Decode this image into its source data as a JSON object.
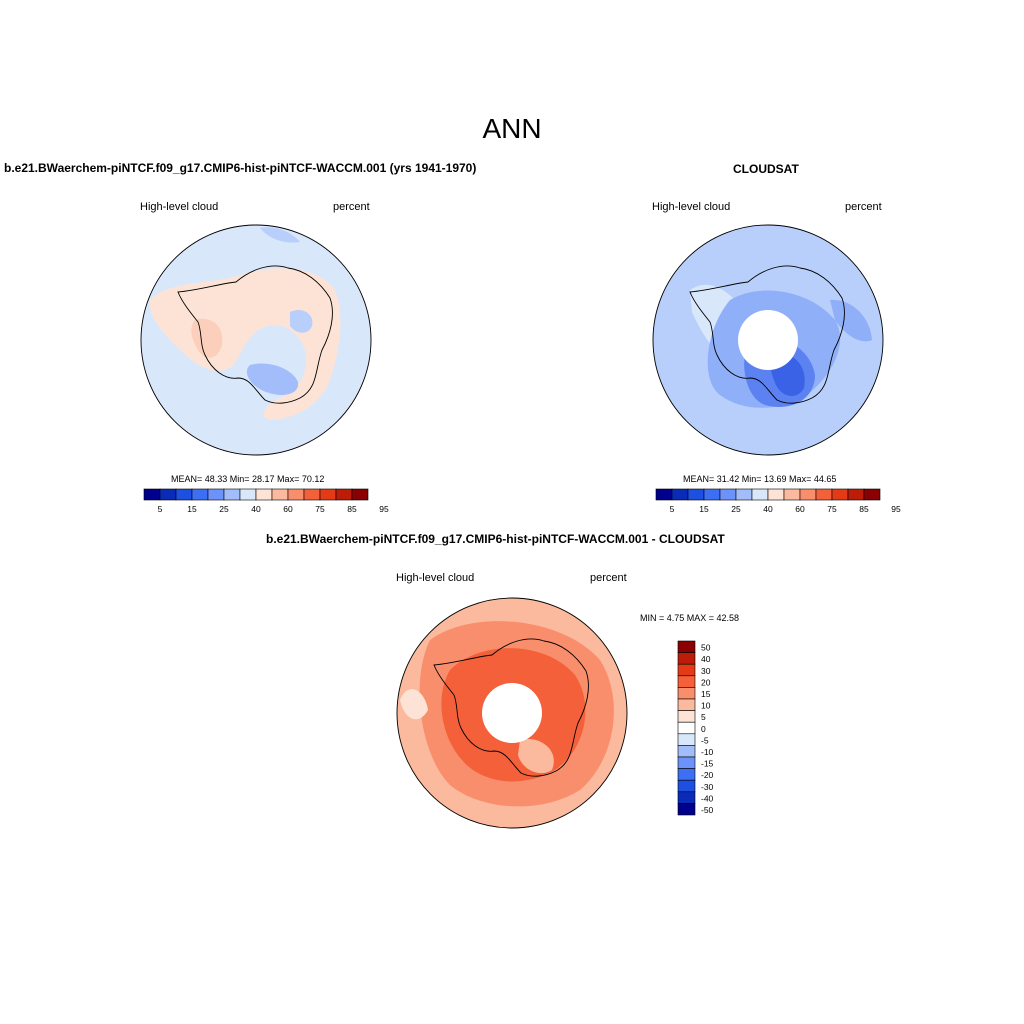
{
  "page_title": "ANN",
  "panels": [
    {
      "title": "b.e21.BWaerchem-piNTCF.f09_g17.CMIP6-hist-piNTCF-WACCM.001 (yrs 1941-1970)",
      "left_label": "High-level cloud",
      "right_label": "percent",
      "stats": "MEAN=  48.33  Min=  28.17  Max=  70.12"
    },
    {
      "title": "CLOUDSAT",
      "left_label": "High-level cloud",
      "right_label": "percent",
      "stats": "MEAN=  31.42  Min=  13.69  Max=  44.65"
    },
    {
      "title": "b.e21.BWaerchem-piNTCF.f09_g17.CMIP6-hist-piNTCF-WACCM.001 - CLOUDSAT",
      "left_label": "High-level cloud",
      "right_label": "percent",
      "stats": "MIN =   4.75 MAX =  42.58"
    }
  ],
  "colorbar_main": {
    "colors": [
      "#00008c",
      "#0a2bb8",
      "#1d4fe0",
      "#3d6ff5",
      "#6c93fa",
      "#a2bdfa",
      "#d9e7fb",
      "#fde3d6",
      "#fbb99e",
      "#f98e6c",
      "#f4603a",
      "#e43b16",
      "#bd1d08",
      "#8b0000"
    ],
    "ticks": [
      "5",
      "15",
      "25",
      "40",
      "60",
      "75",
      "85",
      "95"
    ]
  },
  "colorbar_diff": {
    "levels": [
      "50",
      "40",
      "30",
      "20",
      "15",
      "10",
      "5",
      "0",
      "-5",
      "-10",
      "-15",
      "-20",
      "-30",
      "-40",
      "-50"
    ],
    "colors": [
      "#8b0000",
      "#bd1d08",
      "#e43b16",
      "#f4603a",
      "#f98e6c",
      "#fbb99e",
      "#fde3d6",
      "#ffffff",
      "#d9e7fb",
      "#a2bdfa",
      "#6c93fa",
      "#3d6ff5",
      "#1d4fe0",
      "#0a2bb8",
      "#00008c"
    ]
  },
  "chart_data": {
    "type": "heatmap",
    "projection": "south polar stereographic",
    "variable": "High-level cloud",
    "units": "percent",
    "maps": [
      {
        "panel": "model",
        "mean": 48.33,
        "min": 28.17,
        "max": 70.12
      },
      {
        "panel": "CLOUDSAT",
        "mean": 31.42,
        "min": 13.69,
        "max": 44.65
      },
      {
        "panel": "difference",
        "min": 4.75,
        "max": 42.58
      }
    ],
    "contour_levels": [
      5,
      10,
      15,
      20,
      25,
      30,
      35,
      40,
      50,
      60,
      70,
      75,
      80,
      85,
      90,
      95
    ],
    "difference_levels": [
      -50,
      -40,
      -30,
      -20,
      -15,
      -10,
      -5,
      0,
      5,
      10,
      15,
      20,
      30,
      40,
      50
    ]
  }
}
